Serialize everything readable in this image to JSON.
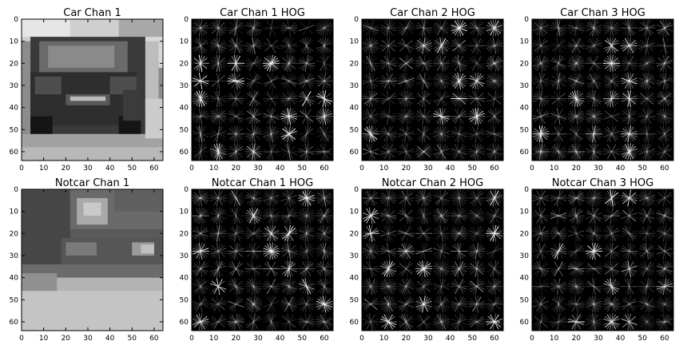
{
  "figure": {
    "background": "#ffffff",
    "panels": [
      {
        "id": "car-chan-1",
        "title": "Car Chan 1",
        "kind": "grayscale-image",
        "subject": "car"
      },
      {
        "id": "car-chan-1-hog",
        "title": "Car Chan 1 HOG",
        "kind": "hog",
        "subject": "car"
      },
      {
        "id": "car-chan-2-hog",
        "title": "Car Chan 2 HOG",
        "kind": "hog",
        "subject": "car"
      },
      {
        "id": "car-chan-3-hog",
        "title": "Car Chan 3 HOG",
        "kind": "hog",
        "subject": "car"
      },
      {
        "id": "notcar-chan-1",
        "title": "Notcar Chan 1",
        "kind": "grayscale-image",
        "subject": "notcar"
      },
      {
        "id": "notcar-chan-1-hog",
        "title": "Notcar Chan 1 HOG",
        "kind": "hog",
        "subject": "notcar"
      },
      {
        "id": "notcar-chan-2-hog",
        "title": "Notcar Chan 2 HOG",
        "kind": "hog",
        "subject": "notcar"
      },
      {
        "id": "notcar-chan-3-hog",
        "title": "Notcar Chan 3 HOG",
        "kind": "hog",
        "subject": "notcar"
      }
    ],
    "axes": {
      "x_ticks": [
        "0",
        "10",
        "20",
        "30",
        "40",
        "50",
        "60"
      ],
      "y_ticks": [
        "0",
        "10",
        "20",
        "30",
        "40",
        "50",
        "60"
      ],
      "range": [
        0,
        64
      ]
    },
    "colors": {
      "hog_background": "#000000",
      "hog_line": "#ffffff",
      "tick_color": "#000000",
      "title_color": "#000000"
    }
  }
}
